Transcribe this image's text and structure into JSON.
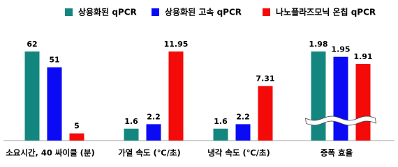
{
  "chart_data": {
    "type": "bar",
    "categories": [
      "소요시간, 40 싸이클 (분)",
      "가열 속도 (℃/초)",
      "냉각 속도 (℃/초)",
      "증폭 효율"
    ],
    "series": [
      {
        "name": "상용화된 qPCR",
        "color": "#13877f",
        "values": [
          62,
          1.6,
          1.6,
          1.98
        ]
      },
      {
        "name": "상용화된 고속 qPCR",
        "color": "#0a0af5",
        "values": [
          51,
          2.2,
          2.2,
          1.95
        ]
      },
      {
        "name": "나노플라즈모닉 온칩 qPCR",
        "color": "#f50a0a",
        "values": [
          5,
          11.95,
          7.31,
          1.91
        ]
      }
    ],
    "value_labels": [
      [
        "62",
        "1.6",
        "1.6",
        "1.98"
      ],
      [
        "51",
        "2.2",
        "2.2",
        "1.95"
      ],
      [
        "5",
        "11.95",
        "7.31",
        "1.91"
      ]
    ],
    "broken_axis_categories": [
      3
    ]
  }
}
